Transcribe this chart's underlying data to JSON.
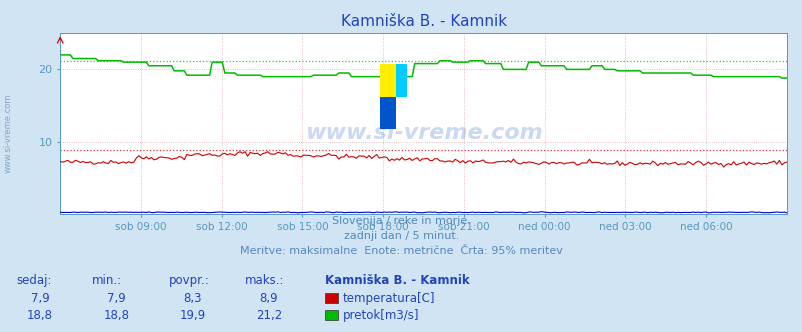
{
  "title": "Kamniška B. - Kamnik",
  "bg_color": "#d0e4f4",
  "plot_bg_color": "#ffffff",
  "tick_color": "#5599bb",
  "subtitle1": "Slovenija / reke in morje.",
  "subtitle2": "zadnji dan / 5 minut.",
  "subtitle3": "Meritve: maksimalne  Enote: metrične  Črta: 95% meritev",
  "x_labels": [
    "sob 09:00",
    "sob 12:00",
    "sob 15:00",
    "sob 18:00",
    "sob 21:00",
    "ned 00:00",
    "ned 03:00",
    "ned 06:00"
  ],
  "ylim": [
    0,
    25
  ],
  "y_ticks": [
    10,
    20
  ],
  "temp_color": "#cc0000",
  "flow_color": "#00bb00",
  "height_color": "#0000cc",
  "temp_max_dotted": 8.9,
  "flow_max_dotted": 21.2,
  "watermark": "www.si-vreme.com",
  "table_headers": [
    "sedaj:",
    "min.:",
    "povpr.:",
    "maks.:",
    "Kamniška B. - Kamnik"
  ],
  "table_row1": [
    "7,9",
    "7,9",
    "8,3",
    "8,9",
    "temperatura[C]"
  ],
  "table_row2": [
    "18,8",
    "18,8",
    "19,9",
    "21,2",
    "pretok[m3/s]"
  ]
}
